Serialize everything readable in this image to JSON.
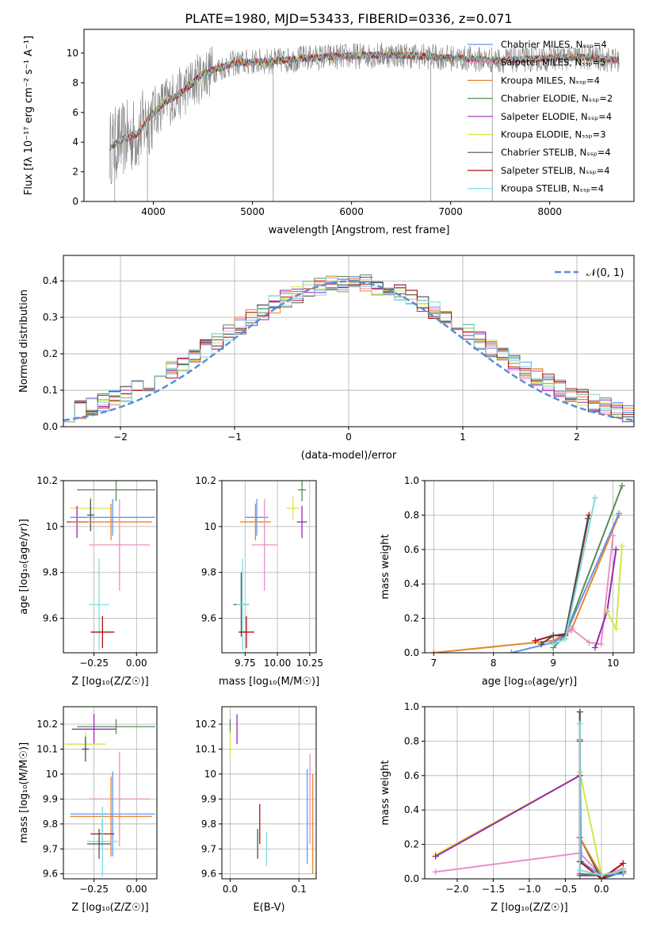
{
  "figure_title": "PLATE=1980, MJD=53433, FIBERID=0336, z=0.071",
  "colors": {
    "chabrier_miles": "#6495ed",
    "salpeter_miles": "#e98fc7",
    "kroupa_miles": "#e8852a",
    "chabrier_elodie": "#5a8a5a",
    "salpeter_elodie": "#9a28b0",
    "kroupa_elodie": "#d4e64a",
    "chabrier_stelib": "#505050",
    "salpeter_stelib": "#b01010",
    "kroupa_stelib": "#80dcdc",
    "spectrum": "#808080",
    "gaussian": "#5b8ed6"
  },
  "chart_data": [
    {
      "id": "spectrum",
      "type": "line",
      "xlabel": "wavelength [Angstrom, rest frame]",
      "ylabel": "Flux [f_λ 10^-17 erg cm^-2 s^-1 A^-1]",
      "xlim": [
        3300,
        8850
      ],
      "ylim": [
        0,
        11.6
      ],
      "xticks": [
        4000,
        5000,
        6000,
        7000,
        8000
      ],
      "yticks": [
        0,
        2,
        4,
        6,
        8,
        10
      ],
      "legend_position": "top-right",
      "legend": [
        {
          "label": "Chabrier MILES, N_SSP=4",
          "color_key": "chabrier_miles"
        },
        {
          "label": "Salpeter MILES, N_SSP=5",
          "color_key": "salpeter_miles"
        },
        {
          "label": "Kroupa MILES, N_SSP=4",
          "color_key": "kroupa_miles"
        },
        {
          "label": "Chabrier ELODIE, N_SSP=2",
          "color_key": "chabrier_elodie"
        },
        {
          "label": "Salpeter ELODIE, N_SSP=4",
          "color_key": "salpeter_elodie"
        },
        {
          "label": "Kroupa ELODIE, N_SSP=3",
          "color_key": "kroupa_elodie"
        },
        {
          "label": "Chabrier STELIB, N_SSP=4",
          "color_key": "chabrier_stelib"
        },
        {
          "label": "Salpeter STELIB, N_SSP=4",
          "color_key": "salpeter_stelib"
        },
        {
          "label": "Kroupa STELIB, N_SSP=4",
          "color_key": "kroupa_stelib"
        }
      ],
      "continuum": {
        "x": [
          3550,
          3700,
          3850,
          3950,
          4100,
          4300,
          4500,
          4800,
          5000,
          5300,
          5600,
          6000,
          6400,
          6800,
          7200,
          7500,
          7800,
          8100,
          8400,
          8700
        ],
        "y": [
          3.6,
          4.2,
          4.6,
          5.6,
          6.6,
          7.4,
          8.6,
          9.3,
          9.4,
          9.5,
          9.7,
          9.8,
          9.9,
          9.75,
          9.6,
          9.5,
          9.6,
          9.7,
          9.7,
          9.5
        ]
      }
    },
    {
      "id": "residuals",
      "type": "line",
      "xlabel": "(data-model)/error",
      "ylabel": "Normed distribution",
      "xlim": [
        -2.5,
        2.5
      ],
      "ylim": [
        0,
        0.47
      ],
      "xticks": [
        -2,
        -1,
        0,
        1,
        2
      ],
      "xtick_labels": [
        "−2",
        "−1",
        "0",
        "1",
        "2"
      ],
      "yticks": [
        0.0,
        0.1,
        0.2,
        0.3,
        0.4
      ],
      "grid": true,
      "legend_position": "top-right",
      "legend": [
        {
          "label": "N(0, 1)",
          "color_key": "gaussian",
          "dashed": true
        }
      ],
      "bin_width": 0.1
    },
    {
      "id": "z_age",
      "type": "scatter",
      "xlabel": "Z [log10(Z/Z☉)]",
      "ylabel": "age  [log10(age/yr)]",
      "xlim": [
        -0.43,
        0.12
      ],
      "ylim": [
        9.45,
        10.2
      ],
      "xticks": [
        -0.25,
        0.0
      ],
      "xtick_labels": [
        "−0.25",
        "0.00"
      ],
      "yticks": [
        9.6,
        9.8,
        10.0,
        10.2
      ],
      "grid": true,
      "points": [
        {
          "color_key": "chabrier_elodie",
          "x": -0.12,
          "xerr": 0.23,
          "y": 10.16,
          "yerr": 0.05
        },
        {
          "color_key": "kroupa_elodie",
          "x": -0.27,
          "xerr": 0.12,
          "y": 10.08,
          "yerr": 0.05
        },
        {
          "color_key": "salpeter_elodie",
          "x": -0.35,
          "xerr": 0.06,
          "y": 10.02,
          "yerr": 0.07
        },
        {
          "color_key": "chabrier_stelib",
          "x": -0.27,
          "xerr": 0.02,
          "y": 10.05,
          "yerr": 0.07
        },
        {
          "color_key": "chabrier_miles",
          "x": -0.14,
          "xerr": 0.25,
          "y": 10.04,
          "yerr": 0.08
        },
        {
          "color_key": "kroupa_miles",
          "x": -0.15,
          "xerr": 0.24,
          "y": 10.02,
          "yerr": 0.08
        },
        {
          "color_key": "salpeter_miles",
          "x": -0.1,
          "xerr": 0.18,
          "y": 9.92,
          "yerr": 0.2
        },
        {
          "color_key": "kroupa_stelib",
          "x": -0.22,
          "xerr": 0.06,
          "y": 9.66,
          "yerr": 0.2
        },
        {
          "color_key": "salpeter_stelib",
          "x": -0.2,
          "xerr": 0.07,
          "y": 9.54,
          "yerr": 0.07
        }
      ]
    },
    {
      "id": "mass_age",
      "type": "scatter",
      "xlabel": "mass [log10(M/M☉)]",
      "ylabel": "",
      "xlim": [
        9.57,
        10.3
      ],
      "ylim": [
        9.45,
        10.2
      ],
      "xticks": [
        9.75,
        10.0,
        10.25
      ],
      "xtick_labels": [
        "9.75",
        "10.00",
        "10.25"
      ],
      "yticks": [
        9.6,
        9.8,
        10.0,
        10.2
      ],
      "grid": true,
      "points": [
        {
          "color_key": "chabrier_elodie",
          "x": 10.19,
          "xerr": 0.03,
          "y": 10.16,
          "yerr": 0.05
        },
        {
          "color_key": "kroupa_elodie",
          "x": 10.12,
          "xerr": 0.05,
          "y": 10.08,
          "yerr": 0.05
        },
        {
          "color_key": "salpeter_elodie",
          "x": 10.19,
          "xerr": 0.04,
          "y": 10.02,
          "yerr": 0.07
        },
        {
          "color_key": "chabrier_miles",
          "x": 9.84,
          "xerr": 0.09,
          "y": 10.04,
          "yerr": 0.08
        },
        {
          "color_key": "kroupa_miles",
          "x": 9.83,
          "xerr": 0.12,
          "y": 10.02,
          "yerr": 0.08
        },
        {
          "color_key": "salpeter_miles",
          "x": 9.9,
          "xerr": 0.1,
          "y": 9.92,
          "yerr": 0.2
        },
        {
          "color_key": "chabrier_stelib",
          "x": 9.72,
          "xerr": 0.06,
          "y": 9.66,
          "yerr": 0.14
        },
        {
          "color_key": "kroupa_stelib",
          "x": 9.73,
          "xerr": 0.05,
          "y": 9.66,
          "yerr": 0.2
        },
        {
          "color_key": "salpeter_stelib",
          "x": 9.76,
          "xerr": 0.06,
          "y": 9.54,
          "yerr": 0.07
        }
      ]
    },
    {
      "id": "age_weight",
      "type": "line",
      "xlabel": "age  [log10(age/yr)]",
      "ylabel": "mass weight",
      "xlim": [
        6.85,
        10.35
      ],
      "ylim": [
        0,
        1.0
      ],
      "xticks": [
        7,
        8,
        9,
        10
      ],
      "yticks": [
        0.0,
        0.2,
        0.4,
        0.6,
        0.8,
        1.0
      ],
      "grid": true,
      "series": [
        {
          "color_key": "chabrier_elodie",
          "x": [
            9.0,
            9.2,
            10.15
          ],
          "y": [
            0.03,
            0.1,
            0.97
          ]
        },
        {
          "color_key": "kroupa_miles",
          "x": [
            7.0,
            9.0,
            9.3,
            10.1
          ],
          "y": [
            0.0,
            0.07,
            0.13,
            0.8
          ]
        },
        {
          "color_key": "chabrier_miles",
          "x": [
            8.3,
            9.0,
            9.2,
            10.1
          ],
          "y": [
            0.0,
            0.06,
            0.1,
            0.81
          ]
        },
        {
          "color_key": "salpeter_miles",
          "x": [
            9.2,
            9.3,
            9.6,
            9.8,
            10.0
          ],
          "y": [
            0.1,
            0.14,
            0.06,
            0.05,
            0.68
          ]
        },
        {
          "color_key": "salpeter_elodie",
          "x": [
            9.7,
            9.9,
            10.05
          ],
          "y": [
            0.03,
            0.24,
            0.6
          ]
        },
        {
          "color_key": "kroupa_elodie",
          "x": [
            9.9,
            10.05,
            10.15
          ],
          "y": [
            0.24,
            0.14,
            0.62
          ]
        },
        {
          "color_key": "salpeter_stelib",
          "x": [
            8.7,
            9.0,
            9.2,
            9.6
          ],
          "y": [
            0.07,
            0.1,
            0.1,
            0.8
          ]
        },
        {
          "color_key": "chabrier_stelib",
          "x": [
            8.8,
            9.0,
            9.2,
            9.58
          ],
          "y": [
            0.05,
            0.1,
            0.11,
            0.78
          ]
        },
        {
          "color_key": "kroupa_stelib",
          "x": [
            9.0,
            9.2,
            9.7
          ],
          "y": [
            0.05,
            0.08,
            0.9
          ]
        }
      ]
    },
    {
      "id": "z_mass",
      "type": "scatter",
      "xlabel": "Z [log10(Z/Z☉)]",
      "ylabel": "mass [log10(M/M☉)]",
      "xlim": [
        -0.43,
        0.12
      ],
      "ylim": [
        9.58,
        10.27
      ],
      "xticks": [
        -0.25,
        0.0
      ],
      "xtick_labels": [
        "−0.25",
        "0.00"
      ],
      "yticks": [
        9.6,
        9.7,
        9.8,
        9.9,
        10.0,
        10.1,
        10.2
      ],
      "grid": true,
      "points": [
        {
          "color_key": "chabrier_elodie",
          "x": -0.12,
          "xerr": 0.23,
          "y": 10.19,
          "yerr": 0.03
        },
        {
          "color_key": "salpeter_elodie",
          "x": -0.25,
          "xerr": 0.13,
          "y": 10.18,
          "yerr": 0.06
        },
        {
          "color_key": "kroupa_elodie",
          "x": -0.3,
          "xerr": 0.12,
          "y": 10.12,
          "yerr": 0.05
        },
        {
          "color_key": "chabrier_stelib",
          "x": -0.3,
          "xerr": 0.02,
          "y": 10.1,
          "yerr": 0.05
        },
        {
          "color_key": "salpeter_miles",
          "x": -0.1,
          "xerr": 0.18,
          "y": 9.9,
          "yerr": 0.19
        },
        {
          "color_key": "chabrier_miles",
          "x": -0.14,
          "xerr": 0.25,
          "y": 9.84,
          "yerr": 0.17
        },
        {
          "color_key": "kroupa_miles",
          "x": -0.15,
          "xerr": 0.24,
          "y": 9.83,
          "yerr": 0.16
        },
        {
          "color_key": "salpeter_stelib",
          "x": -0.2,
          "xerr": 0.07,
          "y": 9.76,
          "yerr": 0.06
        },
        {
          "color_key": "kroupa_stelib",
          "x": -0.2,
          "xerr": 0.09,
          "y": 9.73,
          "yerr": 0.14
        },
        {
          "color_key": "chabrier_stelib",
          "x": -0.22,
          "xerr": 0.07,
          "y": 9.72,
          "yerr": 0.06
        }
      ]
    },
    {
      "id": "ebv_mass",
      "type": "scatter",
      "xlabel": "E(B-V)",
      "ylabel": "",
      "xlim": [
        -0.012,
        0.125
      ],
      "ylim": [
        9.58,
        10.27
      ],
      "xticks": [
        0.0,
        0.1
      ],
      "xtick_labels": [
        "0.0",
        "0.1"
      ],
      "yticks": [
        9.6,
        9.7,
        9.8,
        9.9,
        10.0,
        10.1,
        10.2
      ],
      "grid": true,
      "points": [
        {
          "color_key": "chabrier_elodie",
          "x": 0.0,
          "y": 10.19,
          "yerr": 0.03
        },
        {
          "color_key": "kroupa_elodie",
          "x": 0.0,
          "y": 10.12,
          "yerr": 0.05
        },
        {
          "color_key": "salpeter_elodie",
          "x": 0.01,
          "y": 10.18,
          "yerr": 0.06
        },
        {
          "color_key": "chabrier_stelib",
          "x": 0.04,
          "y": 9.72,
          "yerr": 0.06
        },
        {
          "color_key": "salpeter_stelib",
          "x": 0.043,
          "y": 9.8,
          "yerr": 0.08
        },
        {
          "color_key": "kroupa_stelib",
          "x": 0.053,
          "y": 9.7,
          "yerr": 0.07
        },
        {
          "color_key": "chabrier_miles",
          "x": 0.112,
          "y": 9.83,
          "yerr": 0.19
        },
        {
          "color_key": "salpeter_miles",
          "x": 0.116,
          "y": 9.9,
          "yerr": 0.18
        },
        {
          "color_key": "kroupa_miles",
          "x": 0.12,
          "y": 9.8,
          "yerr": 0.2
        }
      ]
    },
    {
      "id": "z_weight",
      "type": "line",
      "xlabel": "Z [log10(Z/Z☉)]",
      "ylabel": "mass weight",
      "xlim": [
        -2.45,
        0.45
      ],
      "ylim": [
        0,
        1.0
      ],
      "xticks": [
        -2.0,
        -1.5,
        -1.0,
        -0.5,
        0.0
      ],
      "xtick_labels": [
        "−2.0",
        "−1.5",
        "−1.0",
        "−0.5",
        "0.0"
      ],
      "yticks": [
        0.0,
        0.2,
        0.4,
        0.6,
        0.8,
        1.0
      ],
      "grid": true,
      "series": [
        {
          "color_key": "kroupa_elodie",
          "x": [
            -2.3,
            -0.3,
            -0.3,
            0.0,
            0.3
          ],
          "y": [
            0.14,
            0.6,
            0.62,
            0.02,
            0.04
          ]
        },
        {
          "color_key": "salpeter_elodie",
          "x": [
            -2.3,
            -0.3,
            -0.3,
            0.0
          ],
          "y": [
            0.13,
            0.6,
            0.02,
            0.02
          ]
        },
        {
          "color_key": "salpeter_miles",
          "x": [
            -2.3,
            -0.3,
            0.0,
            0.3
          ],
          "y": [
            0.04,
            0.15,
            0.02,
            0.06
          ]
        },
        {
          "color_key": "chabrier_elodie",
          "x": [
            -0.3,
            -0.3,
            0.0
          ],
          "y": [
            0.97,
            0.03,
            0.02
          ]
        },
        {
          "color_key": "chabrier_stelib",
          "x": [
            -0.3,
            -0.3,
            0.0,
            0.3
          ],
          "y": [
            0.97,
            0.24,
            0.0,
            0.04
          ]
        },
        {
          "color_key": "kroupa_miles",
          "x": [
            -0.3,
            -0.3,
            0.0,
            0.3
          ],
          "y": [
            0.8,
            0.24,
            0.02,
            0.05
          ]
        },
        {
          "color_key": "chabrier_miles",
          "x": [
            -0.3,
            -0.28,
            0.0,
            0.3
          ],
          "y": [
            0.81,
            0.1,
            0.02,
            0.03
          ]
        },
        {
          "color_key": "salpeter_stelib",
          "x": [
            -0.3,
            -0.3,
            0.0,
            0.3
          ],
          "y": [
            0.8,
            0.1,
            0.0,
            0.09
          ]
        },
        {
          "color_key": "kroupa_stelib",
          "x": [
            -0.3,
            -0.3,
            0.0,
            0.3
          ],
          "y": [
            0.9,
            0.05,
            0.02,
            0.05
          ]
        }
      ]
    }
  ]
}
